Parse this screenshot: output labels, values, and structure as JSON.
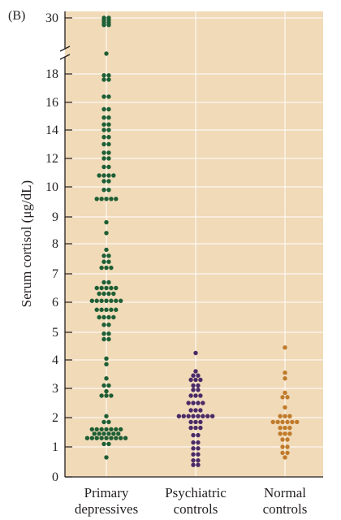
{
  "panel_label": "(B)",
  "chart_data": {
    "type": "scatter",
    "subtype": "dot-strip",
    "title": "",
    "ylabel": "Serum cortisol (μg/dL)",
    "xlabel": "",
    "axis_break": "between 19 and 30",
    "grid": true,
    "y_ticks": [
      "0",
      "1",
      "2",
      "3",
      "4",
      "5",
      "6",
      "7",
      "8",
      "9",
      "10",
      "12",
      "14",
      "16",
      "18",
      "30"
    ],
    "categories": [
      {
        "name": "Primary depressives",
        "lines": [
          "Primary",
          "depressives"
        ],
        "color": "#1e5e34"
      },
      {
        "name": "Psychiatric controls",
        "lines": [
          "Psychiatric",
          "controls"
        ],
        "color": "#4a2a66"
      },
      {
        "name": "Normal controls",
        "lines": [
          "Normal",
          "controls"
        ],
        "color": "#c07a2a"
      }
    ],
    "series": [
      {
        "category": "Primary depressives",
        "points": [
          {
            "y": 30,
            "n": 2
          },
          {
            "y": 29.3,
            "n": 2
          },
          {
            "y": 28.6,
            "n": 2
          },
          {
            "y": 27.9,
            "n": 2
          },
          {
            "y": 19.4,
            "n": 1
          },
          {
            "y": 17.9,
            "n": 2
          },
          {
            "y": 17.6,
            "n": 2
          },
          {
            "y": 16.4,
            "n": 2
          },
          {
            "y": 15.5,
            "n": 2
          },
          {
            "y": 14.9,
            "n": 2
          },
          {
            "y": 14.4,
            "n": 2
          },
          {
            "y": 14.0,
            "n": 2
          },
          {
            "y": 13.5,
            "n": 2
          },
          {
            "y": 13.0,
            "n": 2
          },
          {
            "y": 12.4,
            "n": 2
          },
          {
            "y": 12.0,
            "n": 2
          },
          {
            "y": 11.4,
            "n": 2
          },
          {
            "y": 10.8,
            "n": 4
          },
          {
            "y": 10.4,
            "n": 2
          },
          {
            "y": 9.9,
            "n": 2
          },
          {
            "y": 9.6,
            "n": 5
          },
          {
            "y": 8.8,
            "n": 1
          },
          {
            "y": 8.4,
            "n": 1
          },
          {
            "y": 7.8,
            "n": 1
          },
          {
            "y": 7.6,
            "n": 2
          },
          {
            "y": 7.4,
            "n": 2
          },
          {
            "y": 7.2,
            "n": 3
          },
          {
            "y": 6.7,
            "n": 2
          },
          {
            "y": 6.5,
            "n": 5
          },
          {
            "y": 6.3,
            "n": 4
          },
          {
            "y": 6.05,
            "n": 7
          },
          {
            "y": 5.75,
            "n": 5
          },
          {
            "y": 5.5,
            "n": 4
          },
          {
            "y": 5.25,
            "n": 2
          },
          {
            "y": 4.95,
            "n": 2
          },
          {
            "y": 4.75,
            "n": 2
          },
          {
            "y": 4.05,
            "n": 1
          },
          {
            "y": 3.85,
            "n": 1
          },
          {
            "y": 3.35,
            "n": 1
          },
          {
            "y": 3.1,
            "n": 2
          },
          {
            "y": 2.9,
            "n": 1
          },
          {
            "y": 2.75,
            "n": 3
          },
          {
            "y": 2.05,
            "n": 1
          },
          {
            "y": 1.85,
            "n": 2
          },
          {
            "y": 1.6,
            "n": 7
          },
          {
            "y": 1.45,
            "n": 6
          },
          {
            "y": 1.3,
            "n": 9
          },
          {
            "y": 1.1,
            "n": 2
          },
          {
            "y": 0.65,
            "n": 1
          }
        ]
      },
      {
        "category": "Psychiatric controls",
        "points": [
          {
            "y": 4.25,
            "n": 1
          },
          {
            "y": 3.6,
            "n": 1
          },
          {
            "y": 3.45,
            "n": 2
          },
          {
            "y": 3.3,
            "n": 3
          },
          {
            "y": 3.1,
            "n": 2
          },
          {
            "y": 2.95,
            "n": 2
          },
          {
            "y": 2.75,
            "n": 3
          },
          {
            "y": 2.5,
            "n": 4
          },
          {
            "y": 2.25,
            "n": 3
          },
          {
            "y": 2.05,
            "n": 8
          },
          {
            "y": 1.85,
            "n": 3
          },
          {
            "y": 1.65,
            "n": 3
          },
          {
            "y": 1.4,
            "n": 2
          },
          {
            "y": 1.15,
            "n": 2
          },
          {
            "y": 0.95,
            "n": 2
          },
          {
            "y": 0.75,
            "n": 2
          },
          {
            "y": 0.55,
            "n": 2
          },
          {
            "y": 0.4,
            "n": 2
          }
        ]
      },
      {
        "category": "Normal controls",
        "points": [
          {
            "y": 4.45,
            "n": 1
          },
          {
            "y": 3.55,
            "n": 1
          },
          {
            "y": 3.35,
            "n": 1
          },
          {
            "y": 2.85,
            "n": 1
          },
          {
            "y": 2.7,
            "n": 2
          },
          {
            "y": 2.35,
            "n": 1
          },
          {
            "y": 2.05,
            "n": 3
          },
          {
            "y": 1.85,
            "n": 6
          },
          {
            "y": 1.65,
            "n": 3
          },
          {
            "y": 1.45,
            "n": 3
          },
          {
            "y": 1.25,
            "n": 2
          },
          {
            "y": 1.0,
            "n": 2
          },
          {
            "y": 0.8,
            "n": 2
          },
          {
            "y": 0.65,
            "n": 1
          }
        ]
      }
    ]
  }
}
